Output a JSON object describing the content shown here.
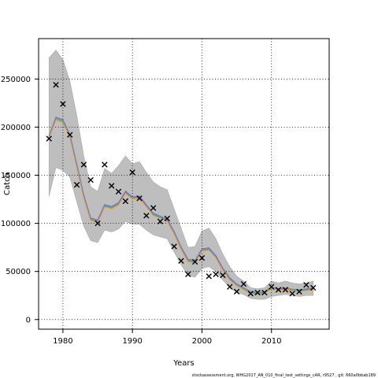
{
  "chart_data": {
    "type": "line",
    "xlabel": "Years",
    "ylabel": "Catch",
    "xlim": [
      1976.5,
      2018.3
    ],
    "ylim": [
      -10000,
      292000
    ],
    "xticks": [
      1980,
      1990,
      2000,
      2010
    ],
    "yticks": [
      0,
      50000,
      100000,
      150000,
      200000,
      250000
    ],
    "ytick_labels": [
      "0",
      "50000",
      "100000",
      "150000",
      "200000",
      "250000"
    ],
    "grid": "dotted",
    "years": [
      1978,
      1979,
      1980,
      1981,
      1982,
      1983,
      1984,
      1985,
      1986,
      1987,
      1988,
      1989,
      1990,
      1991,
      1992,
      1993,
      1994,
      1995,
      1996,
      1997,
      1998,
      1999,
      2000,
      2001,
      2002,
      2003,
      2004,
      2005,
      2006,
      2007,
      2008,
      2009,
      2010,
      2011,
      2012,
      2013,
      2014,
      2015,
      2016
    ],
    "band_upper": [
      272000,
      280000,
      270000,
      248000,
      212000,
      170000,
      138000,
      133000,
      157000,
      152000,
      160000,
      170000,
      162000,
      164000,
      153000,
      143000,
      138000,
      135000,
      115000,
      95000,
      75000,
      76000,
      92000,
      95000,
      84000,
      68000,
      55000,
      45000,
      40000,
      33000,
      32000,
      33000,
      40000,
      38000,
      40000,
      38000,
      37000,
      38000,
      40000
    ],
    "band_lower": [
      128000,
      158000,
      155000,
      148000,
      122000,
      97000,
      82000,
      80000,
      93000,
      91000,
      94000,
      102000,
      99000,
      99000,
      93000,
      88000,
      86000,
      84000,
      70000,
      57000,
      46000,
      44000,
      53000,
      55000,
      50000,
      41000,
      33000,
      28000,
      26000,
      22000,
      21000,
      21000,
      24000,
      25000,
      26000,
      25000,
      24000,
      25000,
      25000
    ],
    "series": [
      {
        "name": "",
        "color": "#9acd32",
        "values": [
          190000,
          209000,
          206000,
          191000,
          160000,
          128000,
          104000,
          102000,
          118000,
          116000,
          120000,
          132000,
          126000,
          127000,
          118000,
          109000,
          106000,
          103000,
          90000,
          74000,
          61000,
          60000,
          72000,
          73000,
          65000,
          52000,
          42000,
          36000,
          32000,
          28000,
          27000,
          28000,
          33000,
          31000,
          32000,
          31000,
          30000,
          31000,
          32000
        ]
      },
      {
        "name": "",
        "color": "#4682b4",
        "values": [
          190500,
          210500,
          207500,
          192500,
          161500,
          129500,
          105500,
          103500,
          119500,
          117500,
          121500,
          133500,
          127500,
          128500,
          119500,
          110500,
          107500,
          104500,
          91500,
          75500,
          62500,
          61500,
          73500,
          74500,
          66500,
          53500,
          43500,
          37000,
          33000,
          29000,
          28000,
          29000,
          34000,
          32000,
          33000,
          31500,
          30500,
          31500,
          32500
        ]
      },
      {
        "name": "",
        "color": "#20b2aa",
        "values": [
          189500,
          208000,
          205000,
          190000,
          159500,
          127500,
          103500,
          101500,
          117500,
          115500,
          119500,
          131500,
          125500,
          126500,
          117500,
          108500,
          105500,
          102500,
          89500,
          73500,
          60500,
          59500,
          71500,
          72500,
          64500,
          51500,
          41500,
          35500,
          31500,
          27500,
          26500,
          27500,
          32500,
          30500,
          31500,
          30500,
          29500,
          30500,
          31500
        ]
      },
      {
        "name": "",
        "color": "#ffa500",
        "values": [
          189000,
          207500,
          204500,
          189500,
          158500,
          127000,
          103000,
          101000,
          117000,
          115000,
          119000,
          131000,
          125000,
          126000,
          117000,
          108000,
          105000,
          102000,
          89000,
          73000,
          60000,
          59000,
          71000,
          72000,
          64000,
          51000,
          41000,
          35000,
          31000,
          27000,
          26000,
          27000,
          32000,
          30000,
          31000,
          30000,
          29000,
          30000,
          31000
        ]
      },
      {
        "name": "",
        "color": "#9370db",
        "values": [
          190000,
          209500,
          206500,
          191500,
          160500,
          128500,
          104500,
          102500,
          118500,
          116500,
          120500,
          132500,
          126500,
          127500,
          118500,
          109500,
          106500,
          103500,
          90500,
          74500,
          61500,
          60500,
          72500,
          73500,
          65500,
          52500,
          42500,
          36500,
          32500,
          28500,
          27500,
          28500,
          33500,
          31500,
          32500,
          31500,
          31000,
          32000,
          33000
        ]
      }
    ],
    "observed": {
      "marker": "x",
      "years": [
        1978,
        1979,
        1980,
        1981,
        1982,
        1983,
        1984,
        1985,
        1986,
        1987,
        1988,
        1989,
        1990,
        1991,
        1992,
        1993,
        1994,
        1995,
        1996,
        1997,
        1998,
        1999,
        2000,
        2001,
        2002,
        2003,
        2004,
        2005,
        2006,
        2007,
        2008,
        2009,
        2010,
        2011,
        2012,
        2013,
        2014,
        2015,
        2016
      ],
      "values": [
        188000,
        244000,
        224000,
        192000,
        140000,
        161000,
        145000,
        100000,
        161000,
        139000,
        133000,
        123000,
        153000,
        126000,
        108000,
        116000,
        102000,
        105000,
        76000,
        61000,
        47000,
        60000,
        64000,
        45000,
        47000,
        46000,
        34000,
        29000,
        37000,
        27000,
        28000,
        28000,
        34000,
        31000,
        31000,
        27000,
        29000,
        36000,
        33000
      ]
    },
    "footnote": "stockassessment.org, WHG2017_AN_010_final_test_settings_cAR, r9527 , git: 660a0bbab189"
  },
  "colors": {
    "band": "#bebebe",
    "band_edge": "#a9a9a9",
    "marker": "#000000",
    "grid": "#000000"
  }
}
